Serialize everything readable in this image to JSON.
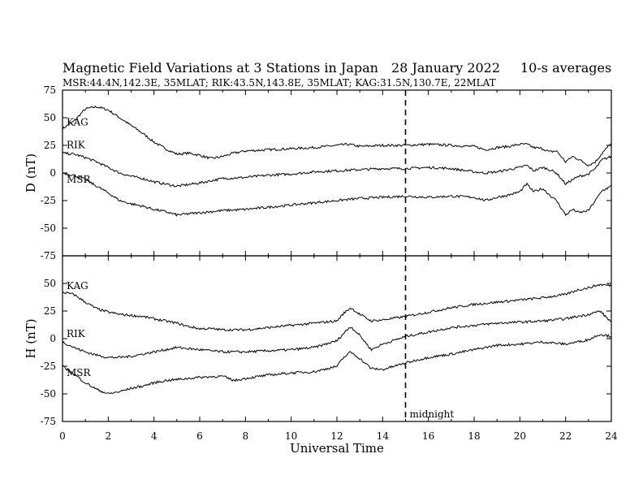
{
  "header": {
    "title": "Magnetic Field Variations at 3 Stations in Japan",
    "date": "28 January 2022",
    "averaging": "10-s averages",
    "stations": "MSR:44.4N,142.3E, 35MLAT;  RIK:43.5N,143.8E, 35MLAT;  KAG:31.5N,130.7E, 22MLAT"
  },
  "chart_data": {
    "type": "line",
    "xlabel": "Universal Time",
    "xlim": [
      0,
      24
    ],
    "xticks": [
      "0",
      "2",
      "4",
      "6",
      "8",
      "10",
      "12",
      "14",
      "16",
      "18",
      "20",
      "22",
      "24"
    ],
    "marker": {
      "x": 15,
      "label": "midnight",
      "style": "dashed"
    },
    "panels": [
      {
        "ylabel": "D (nT)",
        "ylim": [
          -75,
          75
        ],
        "yticks": [
          "75",
          "50",
          "25",
          "0",
          "-25",
          "-50",
          "-75"
        ],
        "series": [
          {
            "name": "KAG",
            "x": [
              0,
              0.5,
              1,
              1.5,
              2,
              2.5,
              3,
              3.5,
              4,
              4.5,
              5,
              5.5,
              6,
              6.5,
              7,
              7.5,
              8,
              9,
              10,
              11,
              12,
              12.5,
              13,
              14,
              15,
              16,
              17,
              18,
              18.5,
              19,
              19.5,
              20,
              20.3,
              20.6,
              21,
              21.3,
              21.6,
              22,
              22.3,
              22.6,
              23,
              23.3,
              23.6,
              24
            ],
            "y": [
              40,
              47,
              58,
              60,
              57,
              50,
              43,
              36,
              28,
              22,
              17,
              18,
              16,
              13,
              15,
              18,
              20,
              21,
              22,
              23,
              25,
              26,
              24,
              25,
              25,
              26,
              25,
              24,
              21,
              23,
              24,
              26,
              26,
              23,
              22,
              19,
              20,
              10,
              15,
              12,
              7,
              10,
              18,
              27
            ]
          },
          {
            "name": "RIK",
            "x": [
              0,
              0.5,
              1,
              1.5,
              2,
              2.5,
              3,
              3.5,
              4,
              4.5,
              5,
              6,
              7,
              8,
              9,
              10,
              11,
              12,
              13,
              14,
              15,
              16,
              17,
              18,
              18.5,
              19,
              19.5,
              20,
              20.3,
              20.6,
              21,
              21.3,
              21.6,
              22,
              22.3,
              22.6,
              23,
              23.3,
              23.6,
              24
            ],
            "y": [
              18,
              17,
              14,
              10,
              5,
              0,
              -3,
              -5,
              -8,
              -10,
              -12,
              -9,
              -5,
              -4,
              -2,
              -1,
              1,
              2,
              3,
              4,
              4,
              5,
              4,
              1,
              0,
              1,
              3,
              5,
              7,
              2,
              5,
              3,
              0,
              -10,
              -6,
              -3,
              -1,
              4,
              12,
              15
            ]
          },
          {
            "name": "MSR",
            "x": [
              0,
              0.5,
              1,
              1.5,
              2,
              2.5,
              3,
              3.5,
              4,
              4.5,
              5,
              6,
              7,
              8,
              9,
              10,
              11,
              12,
              13,
              14,
              15,
              16,
              17,
              18,
              18.5,
              19,
              19.5,
              20,
              20.3,
              20.6,
              21,
              21.3,
              21.6,
              22,
              22.3,
              22.6,
              23,
              23.3,
              23.6,
              24
            ],
            "y": [
              0,
              -2,
              -6,
              -12,
              -18,
              -25,
              -28,
              -30,
              -33,
              -35,
              -38,
              -36,
              -34,
              -33,
              -31,
              -29,
              -27,
              -25,
              -23,
              -22,
              -21,
              -22,
              -21,
              -22,
              -25,
              -22,
              -20,
              -17,
              -10,
              -17,
              -14,
              -20,
              -25,
              -38,
              -33,
              -36,
              -34,
              -25,
              -16,
              -12
            ]
          }
        ]
      },
      {
        "ylabel": "H (nT)",
        "ylim": [
          -75,
          75
        ],
        "yticks": [
          "50",
          "25",
          "0",
          "-25",
          "-50",
          "-75"
        ],
        "series": [
          {
            "name": "KAG",
            "x": [
              0,
              0.5,
              1,
              1.5,
              2,
              2.5,
              3,
              3.5,
              4,
              4.5,
              5,
              5.5,
              6,
              6.5,
              7,
              7.5,
              8,
              9,
              10,
              11,
              12,
              12.3,
              12.6,
              13,
              13.5,
              14,
              15,
              16,
              17,
              18,
              19,
              20,
              21,
              22,
              22.5,
              23,
              23.5,
              24
            ],
            "y": [
              42,
              40,
              33,
              27,
              24,
              22,
              21,
              20,
              18,
              16,
              14,
              11,
              9,
              9,
              8,
              8,
              8,
              10,
              12,
              14,
              16,
              23,
              28,
              22,
              16,
              17,
              20,
              24,
              28,
              31,
              33,
              35,
              37,
              40,
              44,
              46,
              49,
              48
            ]
          },
          {
            "name": "RIK",
            "x": [
              0,
              0.5,
              1,
              1.5,
              2,
              2.5,
              3,
              3.5,
              4,
              4.5,
              5,
              6,
              7,
              8,
              9,
              10,
              11,
              12,
              12.3,
              12.6,
              13,
              13.5,
              14,
              15,
              16,
              17,
              18,
              19,
              20,
              21,
              22,
              22.5,
              23,
              23.5,
              24
            ],
            "y": [
              -3,
              -8,
              -12,
              -15,
              -17,
              -17,
              -16,
              -14,
              -12,
              -10,
              -8,
              -10,
              -12,
              -12,
              -11,
              -10,
              -8,
              -2,
              5,
              11,
              3,
              -10,
              -5,
              2,
              6,
              10,
              12,
              14,
              15,
              16,
              18,
              20,
              22,
              25,
              15
            ]
          },
          {
            "name": "MSR",
            "x": [
              0,
              0.5,
              1,
              1.5,
              2,
              2.5,
              3,
              3.5,
              4,
              4.5,
              5,
              6,
              7,
              7.5,
              8,
              9,
              10,
              11,
              12,
              12.3,
              12.6,
              13,
              13.5,
              14,
              15,
              16,
              17,
              18,
              19,
              20,
              21,
              22,
              22.5,
              23,
              23.5,
              24
            ],
            "y": [
              -25,
              -32,
              -40,
              -46,
              -50,
              -48,
              -45,
              -43,
              -40,
              -38,
              -37,
              -35,
              -34,
              -38,
              -36,
              -33,
              -31,
              -30,
              -25,
              -17,
              -12,
              -18,
              -27,
              -28,
              -22,
              -17,
              -14,
              -10,
              -6,
              -5,
              -3,
              -5,
              -3,
              -1,
              4,
              2
            ]
          }
        ]
      }
    ]
  }
}
